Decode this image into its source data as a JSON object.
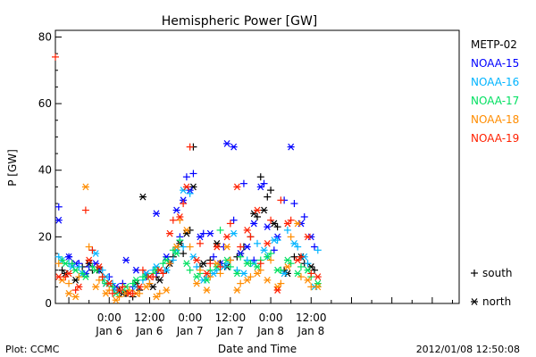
{
  "chart_data": {
    "type": "scatter",
    "title": "Hemispheric Power [GW]",
    "ylabel": "P [GW]",
    "xlabel": "Date and Time",
    "ylim": [
      0,
      82
    ],
    "xlim": [
      -16,
      104
    ],
    "x_units": "hours since 2012/01/06 00:00",
    "y_ticks": [
      0,
      20,
      40,
      60,
      80
    ],
    "x_ticks": [
      {
        "x": 0,
        "time": "0:00",
        "date": "Jan 6"
      },
      {
        "x": 12,
        "time": "12:00",
        "date": "Jan 6"
      },
      {
        "x": 24,
        "time": "0:00",
        "date": "Jan 7"
      },
      {
        "x": 36,
        "time": "12:00",
        "date": "Jan 7"
      },
      {
        "x": 48,
        "time": "0:00",
        "date": "Jan 8"
      },
      {
        "x": 60,
        "time": "12:00",
        "date": "Jan 8"
      }
    ],
    "marker_legend": [
      {
        "symbol": "+",
        "label": "south",
        "kind": "plus"
      },
      {
        "symbol": "*",
        "label": "north",
        "kind": "star"
      }
    ],
    "series": [
      {
        "name": "METP-02",
        "color": "#000000",
        "south": [
          [
            -14,
            10
          ],
          [
            -11,
            12
          ],
          [
            -8,
            11
          ],
          [
            -5,
            10
          ],
          [
            -2,
            8
          ],
          [
            1,
            5
          ],
          [
            3,
            4
          ],
          [
            5,
            3
          ],
          [
            7,
            2
          ],
          [
            9,
            4
          ],
          [
            12,
            6
          ],
          [
            14,
            8
          ],
          [
            17,
            10
          ],
          [
            19,
            14
          ],
          [
            22,
            15
          ],
          [
            24,
            22
          ],
          [
            25,
            47
          ],
          [
            27,
            11
          ],
          [
            30,
            13
          ],
          [
            33,
            12
          ],
          [
            36,
            13
          ],
          [
            38,
            14
          ],
          [
            40,
            17
          ],
          [
            42,
            20
          ],
          [
            44,
            26
          ],
          [
            45,
            38
          ],
          [
            47,
            32
          ],
          [
            48,
            34
          ],
          [
            50,
            23
          ],
          [
            52,
            10
          ],
          [
            55,
            14
          ],
          [
            58,
            12
          ],
          [
            61,
            10
          ]
        ],
        "north": [
          [
            -13,
            9
          ],
          [
            -10,
            7
          ],
          [
            -6,
            12
          ],
          [
            -3,
            10
          ],
          [
            0,
            6
          ],
          [
            4,
            3
          ],
          [
            8,
            6
          ],
          [
            10,
            32
          ],
          [
            13,
            5
          ],
          [
            15,
            7
          ],
          [
            18,
            12
          ],
          [
            21,
            18
          ],
          [
            23,
            21
          ],
          [
            25,
            35
          ],
          [
            28,
            12
          ],
          [
            32,
            18
          ],
          [
            35,
            11
          ],
          [
            39,
            15
          ],
          [
            43,
            27
          ],
          [
            46,
            28
          ],
          [
            49,
            24
          ],
          [
            53,
            9
          ],
          [
            57,
            14
          ],
          [
            60,
            11
          ]
        ]
      },
      {
        "name": "NOAA-15",
        "color": "#0000ff",
        "south": [
          [
            -15,
            29
          ],
          [
            -12,
            14
          ],
          [
            -9,
            12
          ],
          [
            -6,
            11
          ],
          [
            -3,
            10
          ],
          [
            0,
            8
          ],
          [
            4,
            6
          ],
          [
            7,
            5
          ],
          [
            11,
            8
          ],
          [
            14,
            9
          ],
          [
            18,
            12
          ],
          [
            21,
            20
          ],
          [
            23,
            38
          ],
          [
            25,
            39
          ],
          [
            28,
            21
          ],
          [
            31,
            14
          ],
          [
            34,
            17
          ],
          [
            37,
            25
          ],
          [
            40,
            36
          ],
          [
            43,
            13
          ],
          [
            46,
            36
          ],
          [
            49,
            16
          ],
          [
            52,
            31
          ],
          [
            55,
            30
          ],
          [
            58,
            26
          ],
          [
            61,
            17
          ]
        ],
        "north": [
          [
            -15,
            25
          ],
          [
            -12,
            14
          ],
          [
            -10,
            12
          ],
          [
            -7,
            9
          ],
          [
            -4,
            12
          ],
          [
            -1,
            6
          ],
          [
            2,
            5
          ],
          [
            5,
            13
          ],
          [
            8,
            10
          ],
          [
            11,
            9
          ],
          [
            14,
            27
          ],
          [
            17,
            14
          ],
          [
            20,
            28
          ],
          [
            22,
            31
          ],
          [
            24,
            34
          ],
          [
            27,
            20
          ],
          [
            30,
            21
          ],
          [
            33,
            12
          ],
          [
            35,
            48
          ],
          [
            37,
            47
          ],
          [
            39,
            15
          ],
          [
            41,
            17
          ],
          [
            43,
            24
          ],
          [
            45,
            35
          ],
          [
            47,
            23
          ],
          [
            50,
            20
          ],
          [
            54,
            47
          ],
          [
            57,
            24
          ],
          [
            60,
            20
          ]
        ]
      },
      {
        "name": "NOAA-16",
        "color": "#00b4ff",
        "south": [
          [
            -15,
            14
          ],
          [
            -12,
            12
          ],
          [
            -9,
            11
          ],
          [
            -5,
            16
          ],
          [
            -2,
            10
          ],
          [
            1,
            6
          ],
          [
            4,
            4
          ],
          [
            7,
            3
          ],
          [
            10,
            7
          ],
          [
            13,
            10
          ],
          [
            16,
            9
          ],
          [
            19,
            13
          ],
          [
            22,
            17
          ],
          [
            24,
            33
          ],
          [
            26,
            11
          ],
          [
            29,
            8
          ],
          [
            32,
            10
          ],
          [
            35,
            12
          ],
          [
            38,
            10
          ],
          [
            41,
            13
          ],
          [
            44,
            18
          ],
          [
            47,
            14
          ],
          [
            50,
            19
          ],
          [
            53,
            22
          ],
          [
            56,
            17
          ],
          [
            59,
            12
          ],
          [
            62,
            16
          ]
        ],
        "north": [
          [
            -14,
            13
          ],
          [
            -11,
            11
          ],
          [
            -8,
            9
          ],
          [
            -4,
            15
          ],
          [
            -1,
            8
          ],
          [
            2,
            4
          ],
          [
            5,
            3
          ],
          [
            8,
            5
          ],
          [
            11,
            9
          ],
          [
            14,
            11
          ],
          [
            17,
            10
          ],
          [
            20,
            16
          ],
          [
            22,
            34
          ],
          [
            25,
            14
          ],
          [
            28,
            7
          ],
          [
            31,
            9
          ],
          [
            34,
            11
          ],
          [
            37,
            21
          ],
          [
            40,
            9
          ],
          [
            43,
            12
          ],
          [
            46,
            16
          ],
          [
            49,
            19
          ],
          [
            52,
            9
          ],
          [
            55,
            18
          ],
          [
            58,
            14
          ],
          [
            61,
            5
          ]
        ]
      },
      {
        "name": "NOAA-17",
        "color": "#00e060",
        "south": [
          [
            -14,
            13
          ],
          [
            -11,
            12
          ],
          [
            -8,
            9
          ],
          [
            -5,
            11
          ],
          [
            -2,
            7
          ],
          [
            1,
            5
          ],
          [
            4,
            4
          ],
          [
            7,
            6
          ],
          [
            10,
            8
          ],
          [
            13,
            9
          ],
          [
            16,
            12
          ],
          [
            19,
            16
          ],
          [
            21,
            19
          ],
          [
            24,
            10
          ],
          [
            27,
            9
          ],
          [
            30,
            10
          ],
          [
            33,
            22
          ],
          [
            36,
            11
          ],
          [
            39,
            14
          ],
          [
            42,
            12
          ],
          [
            45,
            13
          ],
          [
            48,
            15
          ],
          [
            51,
            10
          ],
          [
            54,
            12
          ],
          [
            57,
            11
          ],
          [
            60,
            8
          ]
        ],
        "north": [
          [
            -13,
            12
          ],
          [
            -10,
            10
          ],
          [
            -7,
            8
          ],
          [
            -4,
            10
          ],
          [
            -1,
            6
          ],
          [
            2,
            3
          ],
          [
            5,
            5
          ],
          [
            8,
            7
          ],
          [
            11,
            8
          ],
          [
            14,
            10
          ],
          [
            17,
            13
          ],
          [
            20,
            15
          ],
          [
            23,
            12
          ],
          [
            26,
            8
          ],
          [
            29,
            7
          ],
          [
            32,
            11
          ],
          [
            35,
            13
          ],
          [
            38,
            9
          ],
          [
            41,
            12
          ],
          [
            44,
            11
          ],
          [
            47,
            14
          ],
          [
            50,
            10
          ],
          [
            53,
            13
          ],
          [
            56,
            9
          ],
          [
            59,
            10
          ],
          [
            62,
            6
          ]
        ]
      },
      {
        "name": "NOAA-18",
        "color": "#ff8c00",
        "south": [
          [
            -15,
            12
          ],
          [
            -12,
            6
          ],
          [
            -9,
            8
          ],
          [
            -6,
            17
          ],
          [
            -3,
            7
          ],
          [
            0,
            4
          ],
          [
            3,
            2
          ],
          [
            6,
            4
          ],
          [
            9,
            3
          ],
          [
            12,
            6
          ],
          [
            15,
            3
          ],
          [
            18,
            12
          ],
          [
            21,
            25
          ],
          [
            24,
            17
          ],
          [
            27,
            10
          ],
          [
            30,
            8
          ],
          [
            33,
            9
          ],
          [
            36,
            13
          ],
          [
            39,
            6
          ],
          [
            42,
            8
          ],
          [
            45,
            10
          ],
          [
            48,
            13
          ],
          [
            51,
            6
          ],
          [
            54,
            20
          ],
          [
            57,
            8
          ],
          [
            60,
            5
          ]
        ],
        "north": [
          [
            -14,
            7
          ],
          [
            -12,
            3
          ],
          [
            -10,
            2
          ],
          [
            -7,
            35
          ],
          [
            -4,
            5
          ],
          [
            -1,
            3
          ],
          [
            2,
            1
          ],
          [
            5,
            3
          ],
          [
            8,
            3
          ],
          [
            11,
            5
          ],
          [
            14,
            2
          ],
          [
            17,
            4
          ],
          [
            20,
            17
          ],
          [
            23,
            22
          ],
          [
            26,
            6
          ],
          [
            29,
            4
          ],
          [
            32,
            12
          ],
          [
            35,
            17
          ],
          [
            38,
            4
          ],
          [
            41,
            7
          ],
          [
            44,
            9
          ],
          [
            47,
            7
          ],
          [
            50,
            5
          ],
          [
            53,
            11
          ],
          [
            56,
            24
          ],
          [
            59,
            7
          ],
          [
            62,
            5
          ]
        ]
      },
      {
        "name": "NOAA-19",
        "color": "#ff2000",
        "south": [
          [
            -16,
            74
          ],
          [
            -13,
            8
          ],
          [
            -10,
            4
          ],
          [
            -7,
            28
          ],
          [
            -5,
            16
          ],
          [
            -2,
            8
          ],
          [
            1,
            3
          ],
          [
            4,
            5
          ],
          [
            7,
            3
          ],
          [
            10,
            10
          ],
          [
            13,
            8
          ],
          [
            16,
            9
          ],
          [
            19,
            25
          ],
          [
            22,
            30
          ],
          [
            24,
            47
          ],
          [
            27,
            18
          ],
          [
            30,
            12
          ],
          [
            33,
            11
          ],
          [
            36,
            24
          ],
          [
            39,
            17
          ],
          [
            42,
            20
          ],
          [
            45,
            12
          ],
          [
            48,
            25
          ],
          [
            51,
            31
          ],
          [
            54,
            25
          ],
          [
            57,
            14
          ],
          [
            60,
            9
          ]
        ],
        "north": [
          [
            -15,
            8
          ],
          [
            -12,
            9
          ],
          [
            -9,
            5
          ],
          [
            -6,
            13
          ],
          [
            -3,
            11
          ],
          [
            0,
            6
          ],
          [
            3,
            4
          ],
          [
            6,
            3
          ],
          [
            9,
            5
          ],
          [
            12,
            8
          ],
          [
            15,
            10
          ],
          [
            18,
            21
          ],
          [
            21,
            26
          ],
          [
            23,
            35
          ],
          [
            26,
            13
          ],
          [
            29,
            9
          ],
          [
            32,
            17
          ],
          [
            35,
            20
          ],
          [
            38,
            35
          ],
          [
            41,
            22
          ],
          [
            44,
            28
          ],
          [
            47,
            18
          ],
          [
            50,
            4
          ],
          [
            53,
            24
          ],
          [
            56,
            13
          ],
          [
            59,
            20
          ],
          [
            62,
            8
          ]
        ]
      }
    ]
  },
  "footer": {
    "plot_label": "Plot: CCMC",
    "timestamp": "2012/01/08 12:50:08"
  }
}
